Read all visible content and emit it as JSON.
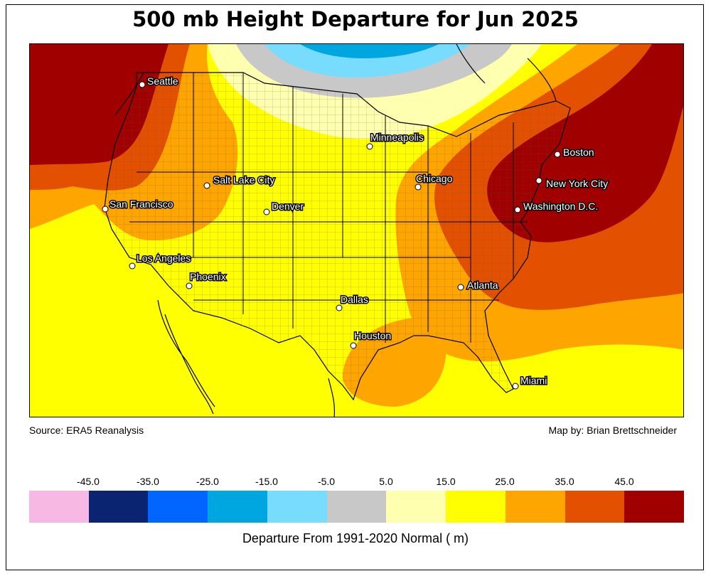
{
  "title": "500 mb Height Departure for Jun 2025",
  "source": "Source: ERA5 Reanalysis",
  "credit": "Map by: Brian Brettschneider",
  "legend": {
    "title": "Departure From 1991-2020 Normal ( m)",
    "ticks": [
      "-45.0",
      "-35.0",
      "-25.0",
      "-15.0",
      "-5.0",
      "5.0",
      "15.0",
      "25.0",
      "35.0",
      "45.0"
    ],
    "colors": [
      "#f7b9e4",
      "#0a2472",
      "#0066ff",
      "#00a6e0",
      "#78dcff",
      "#c8c8c8",
      "#ffffb0",
      "#ffff00",
      "#ffa500",
      "#e35000",
      "#a00000"
    ]
  },
  "cities": [
    {
      "name": "Seattle"
    },
    {
      "name": "San Francisco"
    },
    {
      "name": "Salt Lake City"
    },
    {
      "name": "Denver"
    },
    {
      "name": "Los Angeles"
    },
    {
      "name": "Phoenix"
    },
    {
      "name": "Minneapolis"
    },
    {
      "name": "Chicago"
    },
    {
      "name": "Dallas"
    },
    {
      "name": "Houston"
    },
    {
      "name": "Atlanta"
    },
    {
      "name": "Miami"
    },
    {
      "name": "Boston"
    },
    {
      "name": "New York City"
    },
    {
      "name": "Washington D.C."
    }
  ]
}
